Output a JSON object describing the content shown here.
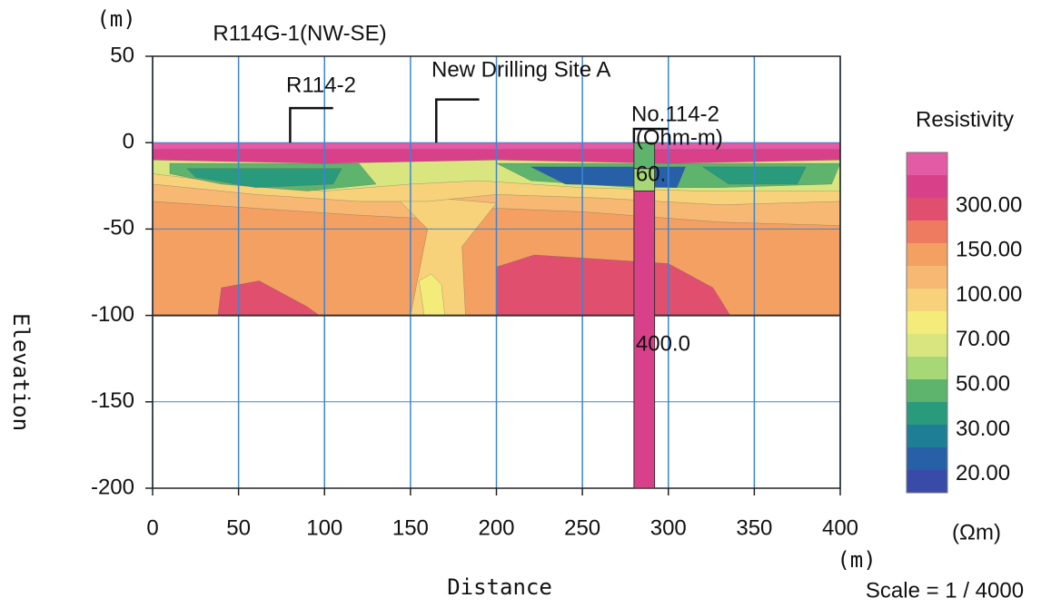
{
  "chart_data": {
    "type": "contour",
    "title": "R114G-1(NW-SE)",
    "x_label": "Distance",
    "y_label": "Elevation",
    "x_unit": "(m)",
    "y_unit": "(m)",
    "xlim": [
      0,
      400
    ],
    "xticks": [
      0,
      50,
      100,
      150,
      200,
      250,
      300,
      350,
      400
    ],
    "ylim": [
      -200,
      50
    ],
    "yticks": [
      -200,
      -150,
      -100,
      -50,
      0,
      50
    ],
    "grid": true,
    "annotations": [
      "R114-2",
      "New Drilling Site A",
      "No.114-2"
    ],
    "borehole": {
      "unit": "(Ohm-m)",
      "segments": [
        {
          "value": 60,
          "label": "60."
        },
        {
          "value": 400,
          "label": "400.0"
        }
      ]
    },
    "colorbar": {
      "title": "Resistivity",
      "unit": "(Ωm)",
      "colors": [
        "#e35aa5",
        "#d9408a",
        "#e0506e",
        "#ee7a60",
        "#f4a062",
        "#f6b873",
        "#f7d27a",
        "#f4ec7a",
        "#d9e680",
        "#a6d877",
        "#5fb46d",
        "#2a9a7c",
        "#1d7e95",
        "#2860a8",
        "#3a4aa8"
      ],
      "levels": [
        {
          "value": 300,
          "label": "300.00"
        },
        {
          "value": 150,
          "label": "150.00"
        },
        {
          "value": 100,
          "label": "100.00"
        },
        {
          "value": 70,
          "label": "70.00"
        },
        {
          "value": 50,
          "label": "50.00"
        },
        {
          "value": 30,
          "label": "30.00"
        },
        {
          "value": 20,
          "label": "20.00"
        }
      ]
    },
    "scale": "Scale = 1 / 4000"
  }
}
